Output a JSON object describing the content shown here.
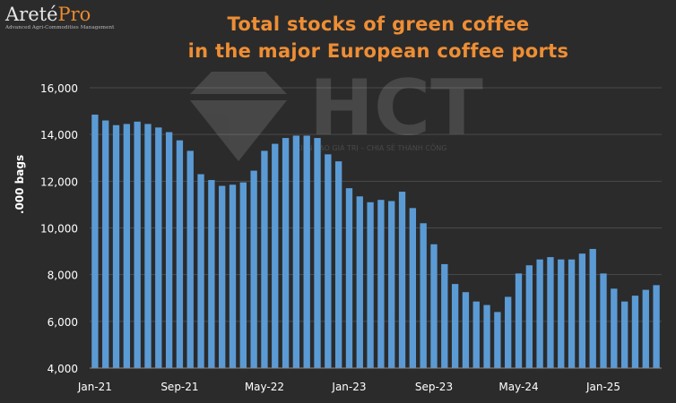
{
  "logo": {
    "name_part1": "Areté",
    "name_part2": "Pro",
    "tagline": "Advanced Agri-Commodities Management"
  },
  "watermark": {
    "brand": "HCT",
    "tagline": "KIẾN TẠO GIÁ TRỊ – CHIA SẺ THÀNH CÔNG"
  },
  "chart_data": {
    "type": "bar",
    "title_line1": "Total stocks of green coffee",
    "title_line2": "in the major European coffee ports",
    "xlabel": "",
    "ylabel": ".000 bags",
    "ylim": [
      4000,
      16000
    ],
    "yticks": [
      4000,
      6000,
      8000,
      10000,
      12000,
      14000,
      16000
    ],
    "ytick_labels": [
      "4,000",
      "6,000",
      "8,000",
      "10,000",
      "12,000",
      "14,000",
      "16,000"
    ],
    "x_tick_labels": [
      {
        "index": 0,
        "label": "Jan-21"
      },
      {
        "index": 8,
        "label": "Sep-21"
      },
      {
        "index": 16,
        "label": "May-22"
      },
      {
        "index": 24,
        "label": "Jan-23"
      },
      {
        "index": 32,
        "label": "Sep-23"
      },
      {
        "index": 40,
        "label": "May-24"
      },
      {
        "index": 48,
        "label": "Jan-25"
      }
    ],
    "categories": [
      "Jan-21",
      "Feb-21",
      "Mar-21",
      "Apr-21",
      "May-21",
      "Jun-21",
      "Jul-21",
      "Aug-21",
      "Sep-21",
      "Oct-21",
      "Nov-21",
      "Dec-21",
      "Jan-22",
      "Feb-22",
      "Mar-22",
      "Apr-22",
      "May-22",
      "Jun-22",
      "Jul-22",
      "Aug-22",
      "Sep-22",
      "Oct-22",
      "Nov-22",
      "Dec-22",
      "Jan-23",
      "Feb-23",
      "Mar-23",
      "Apr-23",
      "May-23",
      "Jun-23",
      "Jul-23",
      "Aug-23",
      "Sep-23",
      "Oct-23",
      "Nov-23",
      "Dec-23",
      "Jan-24",
      "Feb-24",
      "Mar-24",
      "Apr-24",
      "May-24",
      "Jun-24",
      "Jul-24",
      "Aug-24",
      "Sep-24",
      "Oct-24",
      "Nov-24",
      "Dec-24",
      "Jan-25",
      "Feb-25",
      "Mar-25",
      "Apr-25",
      "May-25",
      "Jun-25"
    ],
    "values": [
      14850,
      14600,
      14400,
      14450,
      14550,
      14450,
      14300,
      14100,
      13750,
      13300,
      12300,
      12050,
      11800,
      11850,
      11950,
      12450,
      13300,
      13600,
      13850,
      13950,
      13950,
      13850,
      13150,
      12850,
      11700,
      11350,
      11100,
      11200,
      11150,
      11550,
      10850,
      10200,
      9300,
      8450,
      7600,
      7250,
      6850,
      6700,
      6400,
      7050,
      8050,
      8400,
      8650,
      8750,
      8650,
      8650,
      8900,
      9100,
      8050,
      7400,
      6850,
      7100,
      7350,
      7550
    ],
    "bar_color": "#5b9bd5",
    "grid": "horizontal"
  }
}
